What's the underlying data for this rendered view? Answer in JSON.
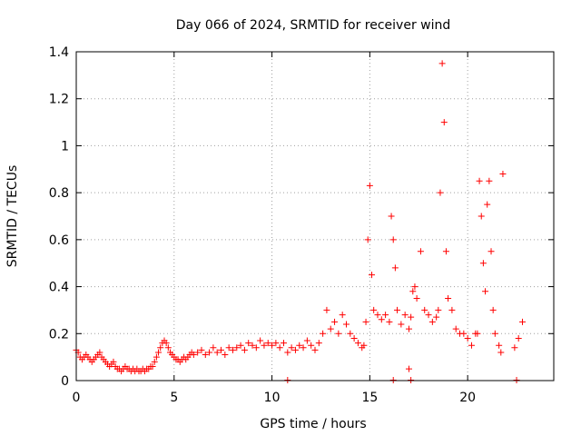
{
  "chart_data": {
    "type": "scatter",
    "title": "Day 066 of 2024, SRMTID for receiver wind",
    "xlabel": "GPS time / hours",
    "ylabel": "SRMTID / TECUs",
    "xlim": [
      0,
      24.4
    ],
    "ylim": [
      0,
      1.4
    ],
    "xticks": [
      "0",
      "5",
      "10",
      "15",
      "20"
    ],
    "xtick_values": [
      0,
      5,
      10,
      15,
      20
    ],
    "yticks": [
      "0",
      "0.2",
      "0.4",
      "0.6",
      "0.8",
      "1",
      "1.2",
      "1.4"
    ],
    "ytick_values": [
      0,
      0.2,
      0.4,
      0.6,
      0.8,
      1.0,
      1.2,
      1.4
    ],
    "grid": true,
    "marker": "+",
    "color": "#ff0000",
    "series": [
      {
        "name": "SRMTID",
        "x": [
          0.0,
          0.1,
          0.2,
          0.3,
          0.4,
          0.5,
          0.6,
          0.7,
          0.8,
          0.9,
          1.0,
          1.1,
          1.2,
          1.3,
          1.4,
          1.5,
          1.6,
          1.7,
          1.8,
          1.9,
          2.0,
          2.1,
          2.2,
          2.3,
          2.4,
          2.5,
          2.6,
          2.7,
          2.8,
          2.9,
          3.0,
          3.1,
          3.2,
          3.3,
          3.4,
          3.5,
          3.6,
          3.7,
          3.8,
          3.9,
          4.0,
          4.1,
          4.2,
          4.3,
          4.4,
          4.5,
          4.6,
          4.7,
          4.8,
          4.9,
          5.0,
          5.1,
          5.2,
          5.3,
          5.4,
          5.5,
          5.6,
          5.7,
          5.8,
          5.9,
          6.0,
          6.2,
          6.4,
          6.6,
          6.8,
          7.0,
          7.2,
          7.4,
          7.6,
          7.8,
          8.0,
          8.2,
          8.4,
          8.6,
          8.8,
          9.0,
          9.2,
          9.4,
          9.6,
          9.8,
          10.0,
          10.2,
          10.4,
          10.6,
          10.8,
          11.0,
          11.2,
          11.4,
          11.6,
          11.8,
          12.0,
          12.2,
          12.4,
          12.6,
          12.8,
          13.0,
          13.2,
          13.4,
          13.6,
          13.8,
          14.0,
          14.2,
          14.4,
          14.6,
          14.7,
          14.8,
          14.9,
          15.0,
          15.1,
          15.2,
          15.4,
          15.6,
          15.8,
          16.0,
          16.1,
          16.2,
          16.3,
          16.4,
          16.6,
          16.8,
          17.0,
          17.1,
          17.2,
          17.3,
          17.4,
          17.6,
          17.8,
          18.0,
          18.2,
          18.4,
          18.5,
          18.6,
          18.7,
          18.8,
          18.9,
          19.0,
          19.2,
          19.4,
          19.6,
          19.8,
          20.0,
          20.2,
          20.4,
          20.5,
          20.6,
          20.7,
          20.8,
          20.9,
          21.0,
          21.1,
          21.2,
          21.3,
          21.4,
          21.6,
          21.7,
          21.8,
          22.4,
          22.6,
          22.8
        ],
        "y": [
          0.13,
          0.12,
          0.1,
          0.09,
          0.1,
          0.11,
          0.1,
          0.09,
          0.08,
          0.09,
          0.1,
          0.11,
          0.12,
          0.1,
          0.09,
          0.08,
          0.07,
          0.06,
          0.07,
          0.08,
          0.06,
          0.05,
          0.05,
          0.04,
          0.05,
          0.06,
          0.05,
          0.05,
          0.04,
          0.05,
          0.04,
          0.05,
          0.04,
          0.04,
          0.05,
          0.04,
          0.05,
          0.05,
          0.06,
          0.06,
          0.08,
          0.1,
          0.12,
          0.14,
          0.16,
          0.17,
          0.16,
          0.14,
          0.12,
          0.11,
          0.1,
          0.09,
          0.09,
          0.08,
          0.09,
          0.1,
          0.09,
          0.1,
          0.11,
          0.12,
          0.11,
          0.12,
          0.13,
          0.11,
          0.12,
          0.14,
          0.12,
          0.13,
          0.11,
          0.14,
          0.13,
          0.14,
          0.15,
          0.13,
          0.16,
          0.15,
          0.14,
          0.17,
          0.15,
          0.16,
          0.15,
          0.16,
          0.14,
          0.16,
          0.12,
          0.14,
          0.13,
          0.15,
          0.14,
          0.17,
          0.15,
          0.13,
          0.16,
          0.2,
          0.3,
          0.22,
          0.25,
          0.2,
          0.28,
          0.24,
          0.2,
          0.18,
          0.16,
          0.14,
          0.15,
          0.25,
          0.6,
          0.83,
          0.45,
          0.3,
          0.28,
          0.26,
          0.28,
          0.25,
          0.7,
          0.6,
          0.48,
          0.3,
          0.24,
          0.28,
          0.22,
          0.27,
          0.38,
          0.4,
          0.35,
          0.55,
          0.3,
          0.28,
          0.25,
          0.27,
          0.3,
          0.8,
          1.35,
          1.1,
          0.55,
          0.35,
          0.3,
          0.22,
          0.2,
          0.2,
          0.18,
          0.15,
          0.2,
          0.2,
          0.85,
          0.7,
          0.5,
          0.38,
          0.75,
          0.85,
          0.55,
          0.3,
          0.2,
          0.15,
          0.12,
          0.88,
          0.14,
          0.18,
          0.25
        ],
        "zero_points_x": [
          10.8,
          16.2,
          17.1,
          22.5
        ],
        "outlier_points": [
          [
            17.0,
            0.05
          ]
        ]
      }
    ]
  }
}
